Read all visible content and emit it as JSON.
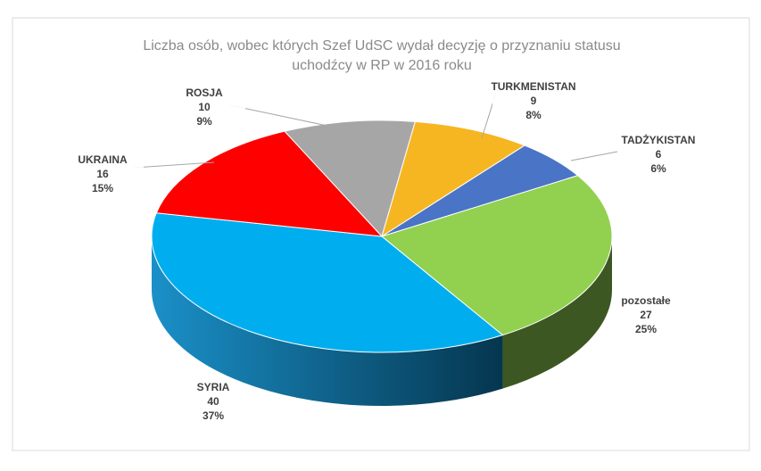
{
  "chart_data": {
    "type": "pie3d",
    "title": [
      "Liczba osób, wobec których Szef UdSC wydał decyzję o  przyznaniu statusu",
      "uchodźcy w RP w 2016 roku"
    ],
    "categories": [
      "ROSJA",
      "TURKMENISTAN",
      "TADŻYKISTAN",
      "pozostałe",
      "SYRIA",
      "UKRAINA"
    ],
    "values": [
      10,
      9,
      6,
      27,
      40,
      16
    ],
    "percent_labels": [
      "9%",
      "8%",
      "6%",
      "25%",
      "37%",
      "15%"
    ],
    "colors": [
      "#a6a6a6",
      "#f6b622",
      "#4a74c6",
      "#92d050",
      "#00aeef",
      "#ff0000"
    ]
  }
}
